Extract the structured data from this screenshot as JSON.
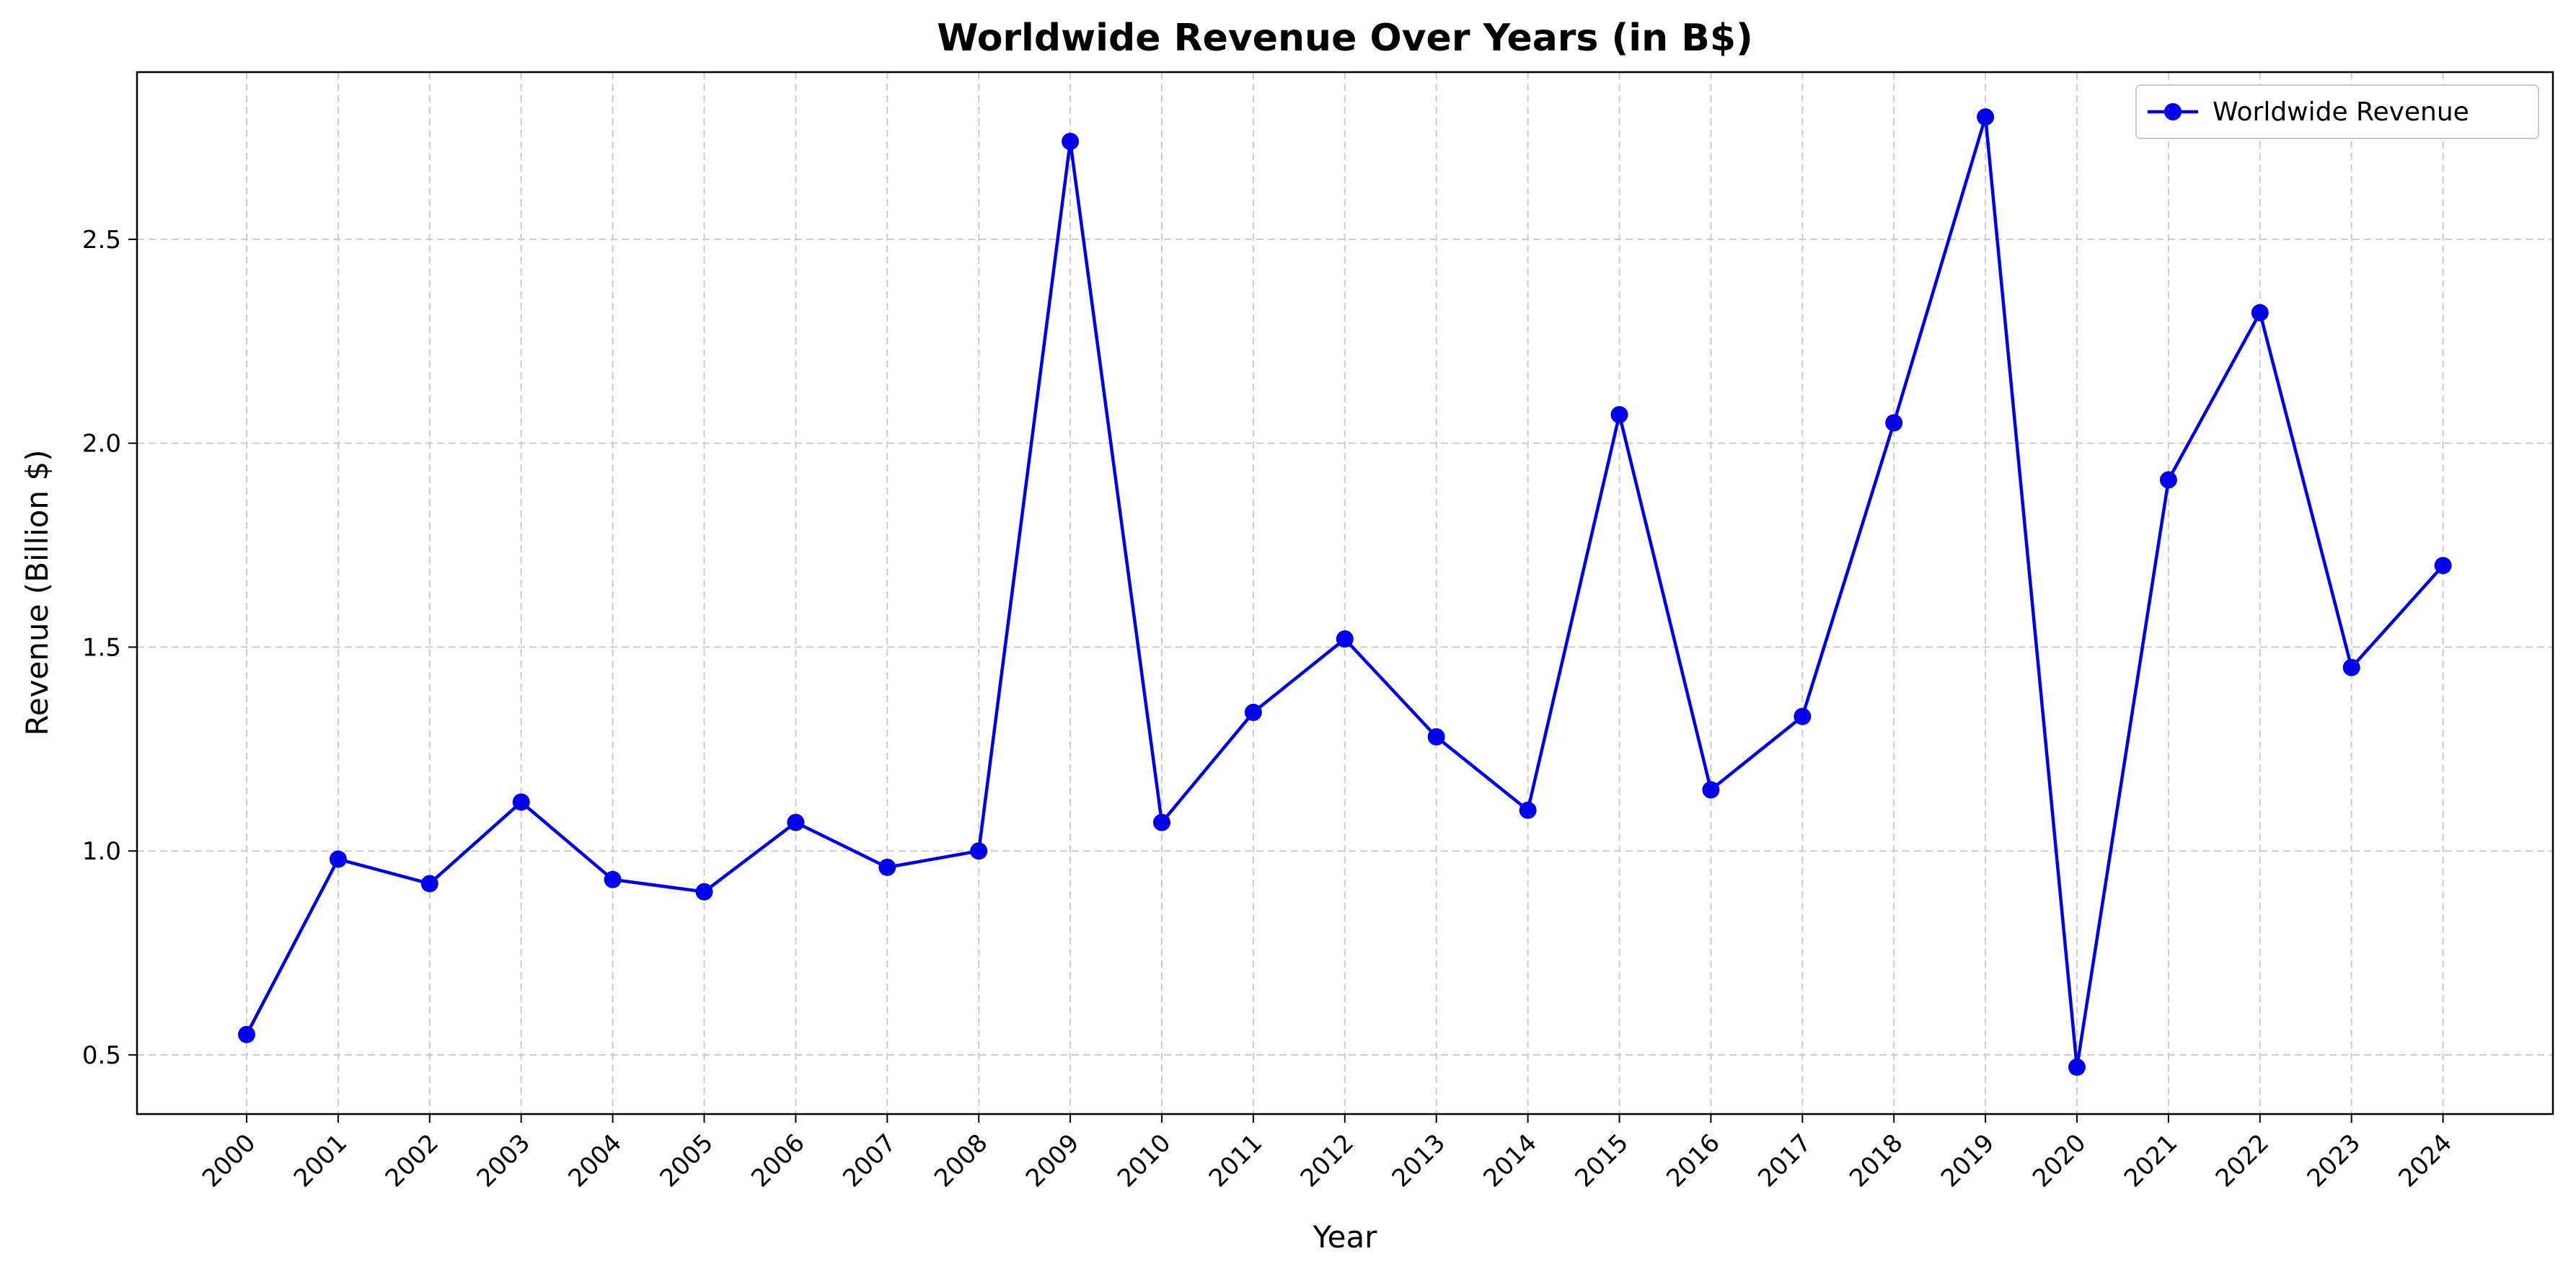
{
  "chart_data": {
    "type": "line",
    "title": "Worldwide Revenue Over Years (in B$)",
    "xlabel": "Year",
    "ylabel": "Revenue (Billion $)",
    "categories": [
      "2000",
      "2001",
      "2002",
      "2003",
      "2004",
      "2005",
      "2006",
      "2007",
      "2008",
      "2009",
      "2010",
      "2011",
      "2012",
      "2013",
      "2014",
      "2015",
      "2016",
      "2017",
      "2018",
      "2019",
      "2020",
      "2021",
      "2022",
      "2023",
      "2024"
    ],
    "series": [
      {
        "name": "Worldwide Revenue",
        "color": "#0000ee",
        "values": [
          0.55,
          0.98,
          0.92,
          1.12,
          0.93,
          0.9,
          1.07,
          0.96,
          1.0,
          2.74,
          1.07,
          1.34,
          1.52,
          1.28,
          1.1,
          2.07,
          1.15,
          1.33,
          2.05,
          2.8,
          0.47,
          1.91,
          2.32,
          1.45,
          1.7
        ]
      }
    ],
    "ylim": [
      0.355,
      2.91
    ],
    "yticks": [
      "0.5",
      "1.0",
      "1.5",
      "2.0",
      "2.5"
    ],
    "grid": true,
    "legend": "top-right"
  }
}
